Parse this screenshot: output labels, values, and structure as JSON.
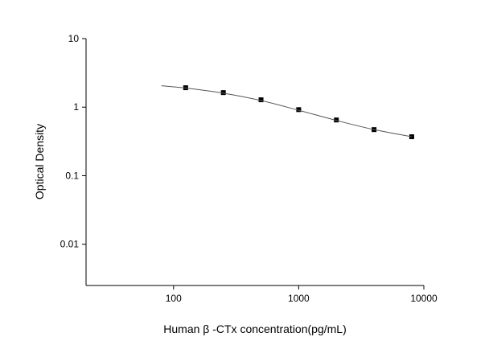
{
  "chart_data": {
    "type": "scatter",
    "x_label": "Human β -CTx concentration(pg/mL)",
    "y_label": "Optical Density",
    "xscale": "log",
    "yscale": "log",
    "xlim": [
      20,
      10000
    ],
    "xticks": [
      100,
      1000,
      10000
    ],
    "ylim": [
      0.0025,
      10
    ],
    "yticks": [
      0.01,
      0.1,
      1,
      10
    ],
    "series": [
      {
        "marker": "square",
        "color": "#000000",
        "x": [
          125,
          250,
          500,
          1000,
          2000,
          4000,
          8000
        ],
        "values": [
          1.92,
          1.63,
          1.28,
          0.92,
          0.65,
          0.47,
          0.37
        ]
      },
      {
        "style": "line",
        "color": "#555555",
        "x": [
          80,
          125,
          250,
          500,
          1000,
          2000,
          4000,
          8000
        ],
        "values": [
          2.05,
          1.9,
          1.6,
          1.25,
          0.9,
          0.64,
          0.47,
          0.37
        ]
      }
    ]
  }
}
